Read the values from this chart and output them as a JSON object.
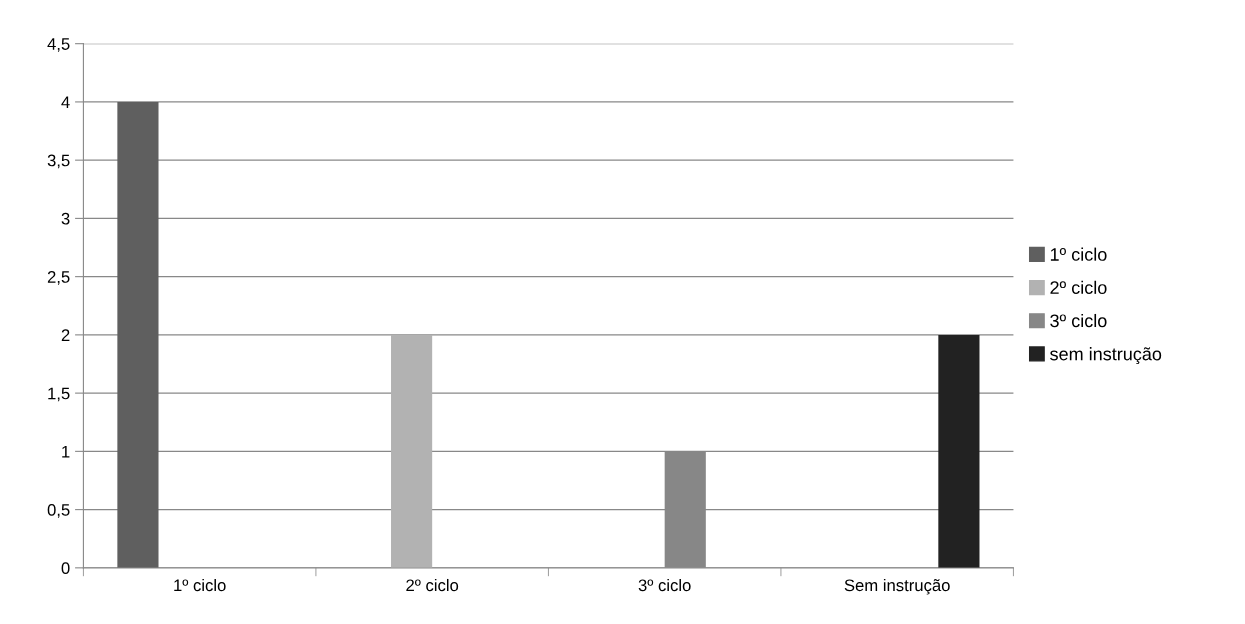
{
  "chart_data": {
    "type": "bar",
    "categories": [
      "1º ciclo",
      "2º ciclo",
      "3º ciclo",
      "Sem instrução"
    ],
    "series": [
      {
        "name": "1º ciclo",
        "color": "#5f5f5f",
        "values": [
          4,
          null,
          null,
          null
        ]
      },
      {
        "name": "2º ciclo",
        "color": "#b2b2b2",
        "values": [
          null,
          2,
          null,
          null
        ]
      },
      {
        "name": "3º ciclo",
        "color": "#878787",
        "values": [
          null,
          null,
          1,
          null
        ]
      },
      {
        "name": "sem instrução",
        "color": "#222222",
        "values": [
          null,
          null,
          null,
          2
        ]
      }
    ],
    "ylim": [
      0,
      4.5
    ],
    "yticks": [
      0,
      {
        "value": 0.5,
        "label": "0,5"
      },
      1,
      {
        "value": 1.5,
        "label": "1,5"
      },
      2,
      {
        "value": 2.5,
        "label": "2,5"
      },
      3,
      {
        "value": 3.5,
        "label": "3,5"
      },
      4,
      {
        "value": 4.5,
        "label": "4,5"
      }
    ],
    "grid": "y",
    "legend": "right"
  }
}
